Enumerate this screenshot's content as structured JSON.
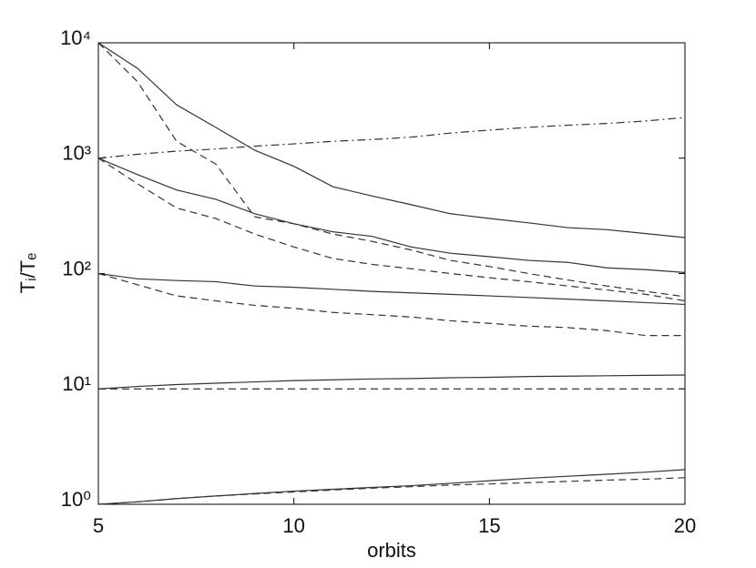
{
  "chart_data": {
    "type": "line",
    "x_label": "orbits",
    "y_label": "Tᵢ/Tₑ",
    "log_y": true,
    "grid": false,
    "xlim": [
      5,
      20
    ],
    "ylim": [
      1,
      10000
    ],
    "xticks": [
      5,
      10,
      15,
      20
    ],
    "yticks": [
      {
        "value": 1,
        "label": "10⁰"
      },
      {
        "value": 10,
        "label": "10¹"
      },
      {
        "value": 100,
        "label": "10²"
      },
      {
        "value": 1000,
        "label": "10³"
      },
      {
        "value": 10000,
        "label": "10⁴"
      }
    ],
    "x": [
      5,
      6,
      7,
      8,
      9,
      10,
      11,
      12,
      13,
      14,
      15,
      16,
      17,
      18,
      19,
      20
    ],
    "series": [
      {
        "color": "#333333",
        "dash": "solid",
        "values": [
          10000,
          6000,
          2900,
          1850,
          1170,
          850,
          565,
          470,
          395,
          330,
          300,
          275,
          250,
          240,
          222,
          205
        ]
      },
      {
        "color": "#333333",
        "dash": "dashed",
        "values": [
          10000,
          4600,
          1400,
          890,
          310,
          270,
          220,
          190,
          160,
          130,
          115,
          100,
          88,
          78,
          70,
          63
        ]
      },
      {
        "color": "#333333",
        "dash": "solid",
        "values": [
          1000,
          720,
          530,
          440,
          330,
          270,
          230,
          210,
          170,
          150,
          140,
          130,
          125,
          112,
          108,
          102
        ]
      },
      {
        "color": "#333333",
        "dash": "dashed",
        "values": [
          1000,
          600,
          370,
          300,
          220,
          170,
          135,
          120,
          110,
          100,
          92,
          85,
          78,
          72,
          66,
          58
        ]
      },
      {
        "color": "#333333",
        "dash": "solid",
        "values": [
          100,
          90,
          87,
          85,
          78,
          76,
          73,
          70,
          68,
          66,
          64,
          62,
          60,
          58,
          56,
          54
        ]
      },
      {
        "color": "#333333",
        "dash": "dashed",
        "values": [
          100,
          80,
          64,
          58,
          53,
          50,
          46,
          44,
          42,
          39,
          37,
          35,
          34,
          32,
          29,
          29
        ]
      },
      {
        "color": "#333333",
        "dash": "solid",
        "values": [
          10,
          10.5,
          10.9,
          11.2,
          11.5,
          11.8,
          12,
          12.2,
          12.3,
          12.5,
          12.6,
          12.8,
          12.9,
          13,
          13.1,
          13.2
        ]
      },
      {
        "color": "#333333",
        "dash": "dashed",
        "values": [
          10,
          10,
          10,
          10,
          10,
          10,
          10,
          10,
          10,
          10,
          10,
          10,
          10,
          10,
          10,
          10
        ]
      },
      {
        "color": "#333333",
        "dash": "solid",
        "values": [
          1,
          1.05,
          1.12,
          1.18,
          1.24,
          1.3,
          1.35,
          1.4,
          1.45,
          1.52,
          1.6,
          1.68,
          1.75,
          1.82,
          1.9,
          2
        ]
      },
      {
        "color": "#333333",
        "dash": "dashed",
        "values": [
          1,
          1.05,
          1.12,
          1.18,
          1.23,
          1.28,
          1.33,
          1.38,
          1.42,
          1.47,
          1.5,
          1.54,
          1.58,
          1.62,
          1.65,
          1.7
        ]
      },
      {
        "color": "#333333",
        "dash": "dashdot",
        "values": [
          1000,
          1080,
          1150,
          1200,
          1270,
          1330,
          1400,
          1450,
          1520,
          1650,
          1750,
          1850,
          1930,
          2000,
          2100,
          2250
        ]
      }
    ]
  }
}
